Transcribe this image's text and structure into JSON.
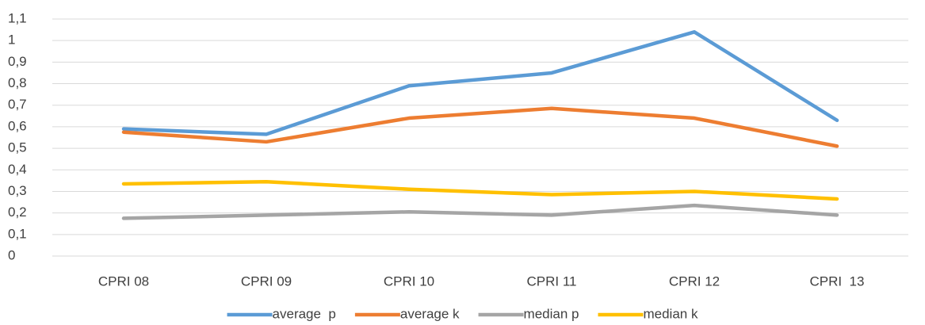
{
  "chart_data": {
    "type": "line",
    "categories": [
      "CPRI 08",
      "CPRI 09",
      "CPRI 10",
      "CPRI 11",
      "CPRI 12",
      "CPRI  13"
    ],
    "series": [
      {
        "name": "average  p",
        "color": "#5b9bd5",
        "values": [
          0.59,
          0.565,
          0.79,
          0.85,
          1.04,
          0.63
        ]
      },
      {
        "name": "average k",
        "color": "#ed7d31",
        "values": [
          0.575,
          0.53,
          0.64,
          0.685,
          0.64,
          0.51
        ]
      },
      {
        "name": "median p",
        "color": "#a5a5a5",
        "values": [
          0.175,
          0.19,
          0.205,
          0.19,
          0.235,
          0.19
        ]
      },
      {
        "name": "median k",
        "color": "#ffc000",
        "values": [
          0.335,
          0.345,
          0.31,
          0.285,
          0.3,
          0.265
        ]
      }
    ],
    "ylim": [
      0,
      1.1
    ],
    "yticks": [
      0,
      {
        "value": 0.1,
        "label": "0,1"
      },
      {
        "value": 0.2,
        "label": "0,2"
      },
      {
        "value": 0.3,
        "label": "0,3"
      },
      {
        "value": 0.4,
        "label": "0,4"
      },
      {
        "value": 0.5,
        "label": "0,5"
      },
      {
        "value": 0.6,
        "label": "0,6"
      },
      {
        "value": 0.7,
        "label": "0,7"
      },
      {
        "value": 0.8,
        "label": "0,8"
      },
      {
        "value": 0.9,
        "label": "0,9"
      },
      1,
      {
        "value": 1.1,
        "label": "1,1"
      }
    ],
    "grid": true,
    "legend": "bottom"
  }
}
